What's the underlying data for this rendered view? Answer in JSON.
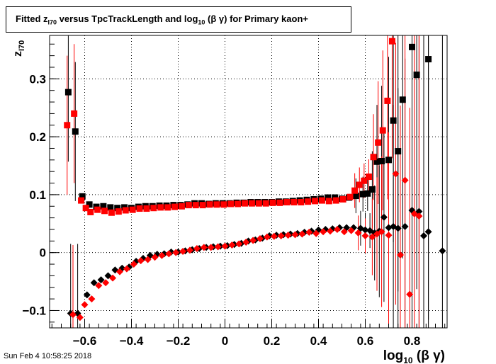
{
  "title": {
    "prefix": "Fitted  z",
    "sub": "I70",
    "middle": "  versus TpcTrackLength and log",
    "sub2": "10",
    "suffix": " (β γ) for Primary kaon+"
  },
  "footer": {
    "date": "Sun Feb  4 10:58:25 2018"
  },
  "chart_data": {
    "type": "scatter",
    "title": "Fitted z_I70 versus TpcTrackLength and log10 (β γ) for Primary kaon+",
    "xlabel": "log10 (β γ)",
    "ylabel": "zI70",
    "xlim": [
      -0.75,
      0.95
    ],
    "ylim": [
      -0.13,
      0.375
    ],
    "x_ticks": [
      -0.6,
      -0.4,
      -0.2,
      0,
      0.2,
      0.4,
      0.6,
      0.8
    ],
    "x_tick_labels": [
      "−0.6",
      "−0.4",
      "−0.2",
      "0",
      "0.2",
      "0.4",
      "0.6",
      "0.8"
    ],
    "y_ticks": [
      -0.1,
      0,
      0.1,
      0.2,
      0.3
    ],
    "y_tick_labels": [
      "−0.1",
      "0",
      "0.1",
      "0.2",
      "0.3"
    ],
    "grid": true,
    "series": [
      {
        "color": "#000000",
        "marker": "square",
        "points": [
          [
            -0.67,
            0.277
          ],
          [
            -0.64,
            0.209
          ],
          [
            -0.61,
            0.097
          ],
          [
            -0.58,
            0.083
          ],
          [
            -0.55,
            0.079
          ],
          [
            -0.52,
            0.08
          ],
          [
            -0.49,
            0.078
          ],
          [
            -0.46,
            0.077
          ],
          [
            -0.43,
            0.078
          ],
          [
            -0.4,
            0.077
          ],
          [
            -0.37,
            0.079
          ],
          [
            -0.34,
            0.08
          ],
          [
            -0.31,
            0.08
          ],
          [
            -0.28,
            0.081
          ],
          [
            -0.25,
            0.081
          ],
          [
            -0.22,
            0.082
          ],
          [
            -0.19,
            0.082
          ],
          [
            -0.16,
            0.083
          ],
          [
            -0.13,
            0.085
          ],
          [
            -0.1,
            0.085
          ],
          [
            -0.07,
            0.084
          ],
          [
            -0.04,
            0.085
          ],
          [
            -0.01,
            0.085
          ],
          [
            0.02,
            0.085
          ],
          [
            0.05,
            0.086
          ],
          [
            0.08,
            0.086
          ],
          [
            0.11,
            0.087
          ],
          [
            0.14,
            0.087
          ],
          [
            0.17,
            0.087
          ],
          [
            0.2,
            0.087
          ],
          [
            0.23,
            0.088
          ],
          [
            0.26,
            0.088
          ],
          [
            0.29,
            0.089
          ],
          [
            0.32,
            0.09
          ],
          [
            0.35,
            0.091
          ],
          [
            0.38,
            0.092
          ],
          [
            0.41,
            0.093
          ],
          [
            0.44,
            0.095
          ],
          [
            0.47,
            0.095
          ],
          [
            0.5,
            0.093
          ],
          [
            0.53,
            0.095
          ],
          [
            0.56,
            0.098
          ],
          [
            0.59,
            0.101
          ],
          [
            0.61,
            0.102
          ],
          [
            0.63,
            0.109
          ],
          [
            0.65,
            0.157
          ],
          [
            0.67,
            0.158
          ],
          [
            0.7,
            0.16
          ],
          [
            0.72,
            0.228
          ],
          [
            0.74,
            0.175
          ],
          [
            0.76,
            0.264
          ],
          [
            0.8,
            0.355
          ],
          [
            0.82,
            0.307
          ],
          [
            0.87,
            0.334
          ]
        ]
      },
      {
        "color": "#ff0000",
        "marker": "square",
        "points": [
          [
            -0.675,
            0.22
          ],
          [
            -0.645,
            0.24
          ],
          [
            -0.615,
            0.09
          ],
          [
            -0.595,
            0.077
          ],
          [
            -0.575,
            0.07
          ],
          [
            -0.545,
            0.074
          ],
          [
            -0.515,
            0.072
          ],
          [
            -0.485,
            0.069
          ],
          [
            -0.455,
            0.071
          ],
          [
            -0.425,
            0.073
          ],
          [
            -0.395,
            0.074
          ],
          [
            -0.365,
            0.076
          ],
          [
            -0.335,
            0.076
          ],
          [
            -0.305,
            0.077
          ],
          [
            -0.275,
            0.078
          ],
          [
            -0.245,
            0.078
          ],
          [
            -0.215,
            0.079
          ],
          [
            -0.185,
            0.08
          ],
          [
            -0.155,
            0.082
          ],
          [
            -0.125,
            0.082
          ],
          [
            -0.095,
            0.082
          ],
          [
            -0.065,
            0.083
          ],
          [
            -0.035,
            0.083
          ],
          [
            -0.005,
            0.083
          ],
          [
            0.025,
            0.084
          ],
          [
            0.055,
            0.084
          ],
          [
            0.085,
            0.085
          ],
          [
            0.115,
            0.085
          ],
          [
            0.145,
            0.085
          ],
          [
            0.175,
            0.085
          ],
          [
            0.205,
            0.086
          ],
          [
            0.235,
            0.086
          ],
          [
            0.265,
            0.087
          ],
          [
            0.295,
            0.087
          ],
          [
            0.325,
            0.087
          ],
          [
            0.355,
            0.088
          ],
          [
            0.385,
            0.089
          ],
          [
            0.415,
            0.09
          ],
          [
            0.445,
            0.089
          ],
          [
            0.475,
            0.09
          ],
          [
            0.505,
            0.092
          ],
          [
            0.535,
            0.096
          ],
          [
            0.555,
            0.107
          ],
          [
            0.575,
            0.117
          ],
          [
            0.595,
            0.124
          ],
          [
            0.615,
            0.131
          ],
          [
            0.635,
            0.165
          ],
          [
            0.655,
            0.19
          ],
          [
            0.675,
            0.211
          ],
          [
            0.695,
            0.262
          ],
          [
            0.715,
            0.365
          ]
        ]
      },
      {
        "color": "#000000",
        "marker": "diamond",
        "points": [
          [
            -0.66,
            -0.105
          ],
          [
            -0.63,
            -0.105
          ],
          [
            -0.59,
            -0.073
          ],
          [
            -0.56,
            -0.052
          ],
          [
            -0.53,
            -0.047
          ],
          [
            -0.5,
            -0.04
          ],
          [
            -0.47,
            -0.03
          ],
          [
            -0.44,
            -0.027
          ],
          [
            -0.41,
            -0.025
          ],
          [
            -0.38,
            -0.015
          ],
          [
            -0.35,
            -0.01
          ],
          [
            -0.32,
            -0.005
          ],
          [
            -0.29,
            -0.003
          ],
          [
            -0.26,
            -0.002
          ],
          [
            -0.23,
            0.001
          ],
          [
            -0.2,
            0.001
          ],
          [
            -0.17,
            0.003
          ],
          [
            -0.14,
            0.005
          ],
          [
            -0.11,
            0.007
          ],
          [
            -0.08,
            0.009
          ],
          [
            -0.05,
            0.01
          ],
          [
            -0.02,
            0.011
          ],
          [
            0.01,
            0.012
          ],
          [
            0.04,
            0.014
          ],
          [
            0.07,
            0.016
          ],
          [
            0.1,
            0.02
          ],
          [
            0.13,
            0.022
          ],
          [
            0.16,
            0.025
          ],
          [
            0.19,
            0.029
          ],
          [
            0.22,
            0.03
          ],
          [
            0.25,
            0.031
          ],
          [
            0.28,
            0.032
          ],
          [
            0.31,
            0.033
          ],
          [
            0.34,
            0.035
          ],
          [
            0.37,
            0.037
          ],
          [
            0.4,
            0.039
          ],
          [
            0.43,
            0.04
          ],
          [
            0.46,
            0.041
          ],
          [
            0.49,
            0.043
          ],
          [
            0.52,
            0.043
          ],
          [
            0.55,
            0.043
          ],
          [
            0.58,
            0.042
          ],
          [
            0.6,
            0.039
          ],
          [
            0.62,
            0.038
          ],
          [
            0.64,
            0.034
          ],
          [
            0.66,
            0.037
          ],
          [
            0.68,
            0.061
          ],
          [
            0.7,
            0.043
          ],
          [
            0.72,
            0.045
          ],
          [
            0.74,
            0.042
          ],
          [
            0.77,
            0.045
          ],
          [
            0.8,
            0.073
          ],
          [
            0.83,
            0.071
          ],
          [
            0.85,
            0.029
          ],
          [
            0.87,
            0.036
          ],
          [
            0.93,
            0.003
          ]
        ]
      },
      {
        "color": "#ff0000",
        "marker": "diamond",
        "points": [
          [
            -0.65,
            -0.107
          ],
          [
            -0.62,
            -0.112
          ],
          [
            -0.6,
            -0.09
          ],
          [
            -0.57,
            -0.08
          ],
          [
            -0.54,
            -0.057
          ],
          [
            -0.51,
            -0.052
          ],
          [
            -0.48,
            -0.044
          ],
          [
            -0.45,
            -0.033
          ],
          [
            -0.42,
            -0.028
          ],
          [
            -0.39,
            -0.02
          ],
          [
            -0.36,
            -0.014
          ],
          [
            -0.33,
            -0.012
          ],
          [
            -0.3,
            -0.008
          ],
          [
            -0.27,
            -0.005
          ],
          [
            -0.24,
            -0.002
          ],
          [
            -0.21,
            0.0
          ],
          [
            -0.18,
            0.002
          ],
          [
            -0.15,
            0.004
          ],
          [
            -0.12,
            0.007
          ],
          [
            -0.09,
            0.009
          ],
          [
            -0.06,
            0.009
          ],
          [
            -0.03,
            0.01
          ],
          [
            0.0,
            0.011
          ],
          [
            0.03,
            0.013
          ],
          [
            0.06,
            0.015
          ],
          [
            0.09,
            0.018
          ],
          [
            0.12,
            0.021
          ],
          [
            0.15,
            0.024
          ],
          [
            0.18,
            0.027
          ],
          [
            0.21,
            0.028
          ],
          [
            0.24,
            0.029
          ],
          [
            0.27,
            0.03
          ],
          [
            0.3,
            0.031
          ],
          [
            0.33,
            0.032
          ],
          [
            0.36,
            0.035
          ],
          [
            0.39,
            0.033
          ],
          [
            0.42,
            0.036
          ],
          [
            0.45,
            0.037
          ],
          [
            0.48,
            0.04
          ],
          [
            0.51,
            0.036
          ],
          [
            0.54,
            0.038
          ],
          [
            0.57,
            0.034
          ],
          [
            0.6,
            0.029
          ],
          [
            0.63,
            0.027
          ],
          [
            0.65,
            0.032
          ],
          [
            0.67,
            0.036
          ],
          [
            0.7,
            0.03
          ],
          [
            0.73,
            0.136
          ],
          [
            0.75,
            -0.004
          ],
          [
            0.77,
            0.125
          ],
          [
            0.79,
            -0.072
          ],
          [
            0.81,
            0.067
          ],
          [
            0.83,
            0.063
          ]
        ]
      }
    ]
  }
}
